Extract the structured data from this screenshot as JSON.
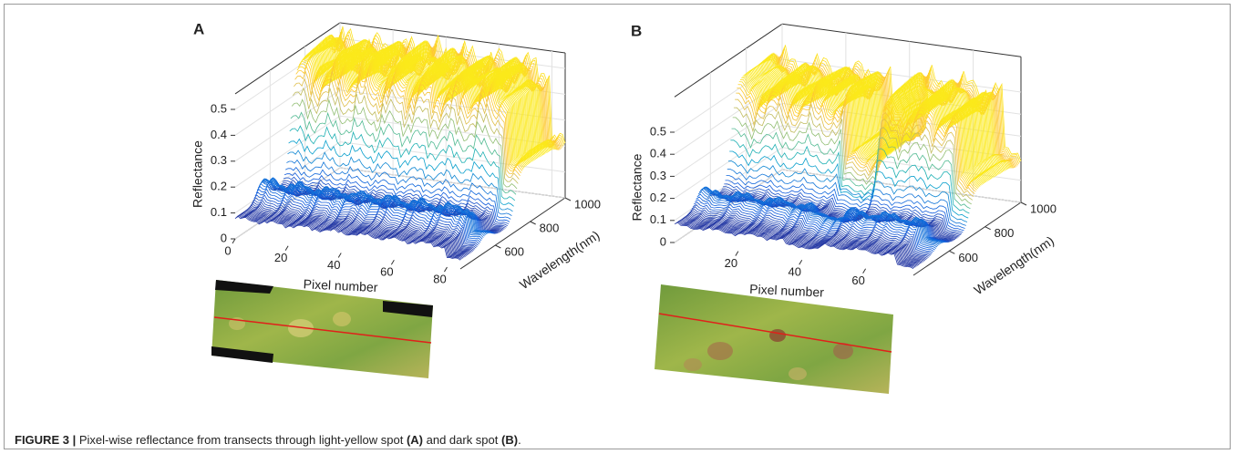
{
  "figure": {
    "panels": [
      {
        "label": "A",
        "z_label": "Reflectance",
        "x_label": "Pixel number",
        "y_label": "Wavelength(nm)",
        "z_ticks": [
          0,
          0.1,
          0.2,
          0.3,
          0.4,
          0.5
        ],
        "x_ticks": [
          0,
          20,
          40,
          60,
          80
        ],
        "y_ticks": [
          600,
          800,
          1000
        ]
      },
      {
        "label": "B",
        "z_label": "Reflectance",
        "x_label": "Pixel number",
        "y_label": "Wavelength(nm)",
        "z_ticks": [
          0,
          0.1,
          0.2,
          0.3,
          0.4,
          0.5
        ],
        "x_ticks": [
          20,
          40,
          60
        ],
        "y_ticks": [
          600,
          800,
          1000
        ]
      }
    ],
    "caption": {
      "label": "FIGURE 3 |",
      "text": "Pixel-wise reflectance from transects through light-yellow spot",
      "ref_a": "(A)",
      "mid": "and dark spot",
      "ref_b": "(B)",
      "end": "."
    }
  }
}
